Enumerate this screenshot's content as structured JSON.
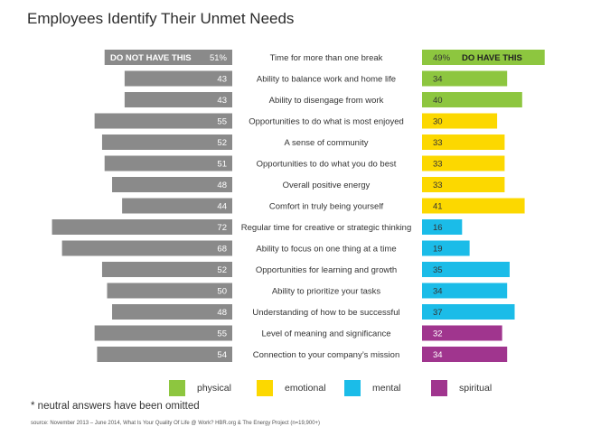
{
  "title": "Employees Identify Their Unmet Needs",
  "footnote": "* neutral answers have been omitted",
  "source": "source: November 2013 – June 2014, What Is Your Quality Of Life @ Work? HBR.org & The Energy Project (n=19,900+)",
  "colors": {
    "negative": "#8a8a8a",
    "physical": "#8dc63f",
    "emotional": "#fcd800",
    "mental": "#1bbce8",
    "spiritual": "#a0358e",
    "category_text": "#333333"
  },
  "legend": [
    {
      "key": "physical",
      "label": "physical"
    },
    {
      "key": "emotional",
      "label": "emotional"
    },
    {
      "key": "mental",
      "label": "mental"
    },
    {
      "key": "spiritual",
      "label": "spiritual"
    }
  ],
  "chart_data": {
    "type": "bar",
    "orientation": "horizontal-diverging",
    "left_header": "DO NOT HAVE THIS",
    "right_header": "DO HAVE THIS",
    "first_row_suffix": "%",
    "rows": [
      {
        "label": "Time for more than one break",
        "do_not_have": 51,
        "do_have": 49,
        "category": "physical"
      },
      {
        "label": "Ability to balance work and home life",
        "do_not_have": 43,
        "do_have": 34,
        "category": "physical"
      },
      {
        "label": "Ability to disengage from work",
        "do_not_have": 43,
        "do_have": 40,
        "category": "physical"
      },
      {
        "label": "Opportunities to do what is most enjoyed",
        "do_not_have": 55,
        "do_have": 30,
        "category": "emotional"
      },
      {
        "label": "A sense of community",
        "do_not_have": 52,
        "do_have": 33,
        "category": "emotional"
      },
      {
        "label": "Opportunities to do what you do best",
        "do_not_have": 51,
        "do_have": 33,
        "category": "emotional"
      },
      {
        "label": "Overall positive energy",
        "do_not_have": 48,
        "do_have": 33,
        "category": "emotional"
      },
      {
        "label": "Comfort in truly being yourself",
        "do_not_have": 44,
        "do_have": 41,
        "category": "emotional"
      },
      {
        "label": "Regular time for creative or strategic thinking",
        "do_not_have": 72,
        "do_have": 16,
        "category": "mental"
      },
      {
        "label": "Ability to focus on one thing at a time",
        "do_not_have": 68,
        "do_have": 19,
        "category": "mental"
      },
      {
        "label": "Opportunities for learning and growth",
        "do_not_have": 52,
        "do_have": 35,
        "category": "mental"
      },
      {
        "label": "Ability to prioritize your tasks",
        "do_not_have": 50,
        "do_have": 34,
        "category": "mental"
      },
      {
        "label": "Understanding of how to be successful",
        "do_not_have": 48,
        "do_have": 37,
        "category": "mental"
      },
      {
        "label": "Level of meaning and significance",
        "do_not_have": 55,
        "do_have": 32,
        "category": "spiritual"
      },
      {
        "label": "Connection to your company’s mission",
        "do_not_have": 54,
        "do_have": 34,
        "category": "spiritual"
      }
    ]
  }
}
